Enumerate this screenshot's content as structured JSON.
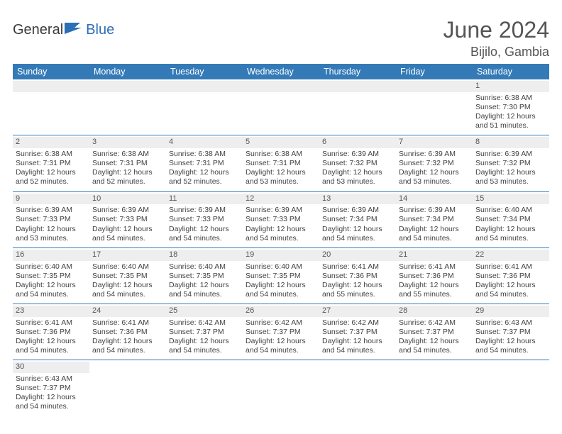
{
  "brand": {
    "part1": "General",
    "part2": "Blue"
  },
  "title": "June 2024",
  "location": "Bijilo, Gambia",
  "colors": {
    "header_bg": "#337ab7",
    "header_text": "#ffffff",
    "band_bg": "#eeeeee",
    "rule": "#337ab7",
    "brand_blue": "#2d6fb4",
    "text": "#424242",
    "title_color": "#555555"
  },
  "weekdays": [
    "Sunday",
    "Monday",
    "Tuesday",
    "Wednesday",
    "Thursday",
    "Friday",
    "Saturday"
  ],
  "weeks": [
    [
      null,
      null,
      null,
      null,
      null,
      null,
      {
        "n": "1",
        "rise": "Sunrise: 6:38 AM",
        "set": "Sunset: 7:30 PM",
        "day": "Daylight: 12 hours and 51 minutes."
      }
    ],
    [
      {
        "n": "2",
        "rise": "Sunrise: 6:38 AM",
        "set": "Sunset: 7:31 PM",
        "day": "Daylight: 12 hours and 52 minutes."
      },
      {
        "n": "3",
        "rise": "Sunrise: 6:38 AM",
        "set": "Sunset: 7:31 PM",
        "day": "Daylight: 12 hours and 52 minutes."
      },
      {
        "n": "4",
        "rise": "Sunrise: 6:38 AM",
        "set": "Sunset: 7:31 PM",
        "day": "Daylight: 12 hours and 52 minutes."
      },
      {
        "n": "5",
        "rise": "Sunrise: 6:38 AM",
        "set": "Sunset: 7:31 PM",
        "day": "Daylight: 12 hours and 53 minutes."
      },
      {
        "n": "6",
        "rise": "Sunrise: 6:39 AM",
        "set": "Sunset: 7:32 PM",
        "day": "Daylight: 12 hours and 53 minutes."
      },
      {
        "n": "7",
        "rise": "Sunrise: 6:39 AM",
        "set": "Sunset: 7:32 PM",
        "day": "Daylight: 12 hours and 53 minutes."
      },
      {
        "n": "8",
        "rise": "Sunrise: 6:39 AM",
        "set": "Sunset: 7:32 PM",
        "day": "Daylight: 12 hours and 53 minutes."
      }
    ],
    [
      {
        "n": "9",
        "rise": "Sunrise: 6:39 AM",
        "set": "Sunset: 7:33 PM",
        "day": "Daylight: 12 hours and 53 minutes."
      },
      {
        "n": "10",
        "rise": "Sunrise: 6:39 AM",
        "set": "Sunset: 7:33 PM",
        "day": "Daylight: 12 hours and 54 minutes."
      },
      {
        "n": "11",
        "rise": "Sunrise: 6:39 AM",
        "set": "Sunset: 7:33 PM",
        "day": "Daylight: 12 hours and 54 minutes."
      },
      {
        "n": "12",
        "rise": "Sunrise: 6:39 AM",
        "set": "Sunset: 7:33 PM",
        "day": "Daylight: 12 hours and 54 minutes."
      },
      {
        "n": "13",
        "rise": "Sunrise: 6:39 AM",
        "set": "Sunset: 7:34 PM",
        "day": "Daylight: 12 hours and 54 minutes."
      },
      {
        "n": "14",
        "rise": "Sunrise: 6:39 AM",
        "set": "Sunset: 7:34 PM",
        "day": "Daylight: 12 hours and 54 minutes."
      },
      {
        "n": "15",
        "rise": "Sunrise: 6:40 AM",
        "set": "Sunset: 7:34 PM",
        "day": "Daylight: 12 hours and 54 minutes."
      }
    ],
    [
      {
        "n": "16",
        "rise": "Sunrise: 6:40 AM",
        "set": "Sunset: 7:35 PM",
        "day": "Daylight: 12 hours and 54 minutes."
      },
      {
        "n": "17",
        "rise": "Sunrise: 6:40 AM",
        "set": "Sunset: 7:35 PM",
        "day": "Daylight: 12 hours and 54 minutes."
      },
      {
        "n": "18",
        "rise": "Sunrise: 6:40 AM",
        "set": "Sunset: 7:35 PM",
        "day": "Daylight: 12 hours and 54 minutes."
      },
      {
        "n": "19",
        "rise": "Sunrise: 6:40 AM",
        "set": "Sunset: 7:35 PM",
        "day": "Daylight: 12 hours and 54 minutes."
      },
      {
        "n": "20",
        "rise": "Sunrise: 6:41 AM",
        "set": "Sunset: 7:36 PM",
        "day": "Daylight: 12 hours and 55 minutes."
      },
      {
        "n": "21",
        "rise": "Sunrise: 6:41 AM",
        "set": "Sunset: 7:36 PM",
        "day": "Daylight: 12 hours and 55 minutes."
      },
      {
        "n": "22",
        "rise": "Sunrise: 6:41 AM",
        "set": "Sunset: 7:36 PM",
        "day": "Daylight: 12 hours and 54 minutes."
      }
    ],
    [
      {
        "n": "23",
        "rise": "Sunrise: 6:41 AM",
        "set": "Sunset: 7:36 PM",
        "day": "Daylight: 12 hours and 54 minutes."
      },
      {
        "n": "24",
        "rise": "Sunrise: 6:41 AM",
        "set": "Sunset: 7:36 PM",
        "day": "Daylight: 12 hours and 54 minutes."
      },
      {
        "n": "25",
        "rise": "Sunrise: 6:42 AM",
        "set": "Sunset: 7:37 PM",
        "day": "Daylight: 12 hours and 54 minutes."
      },
      {
        "n": "26",
        "rise": "Sunrise: 6:42 AM",
        "set": "Sunset: 7:37 PM",
        "day": "Daylight: 12 hours and 54 minutes."
      },
      {
        "n": "27",
        "rise": "Sunrise: 6:42 AM",
        "set": "Sunset: 7:37 PM",
        "day": "Daylight: 12 hours and 54 minutes."
      },
      {
        "n": "28",
        "rise": "Sunrise: 6:42 AM",
        "set": "Sunset: 7:37 PM",
        "day": "Daylight: 12 hours and 54 minutes."
      },
      {
        "n": "29",
        "rise": "Sunrise: 6:43 AM",
        "set": "Sunset: 7:37 PM",
        "day": "Daylight: 12 hours and 54 minutes."
      }
    ],
    [
      {
        "n": "30",
        "rise": "Sunrise: 6:43 AM",
        "set": "Sunset: 7:37 PM",
        "day": "Daylight: 12 hours and 54 minutes."
      },
      null,
      null,
      null,
      null,
      null,
      null
    ]
  ]
}
